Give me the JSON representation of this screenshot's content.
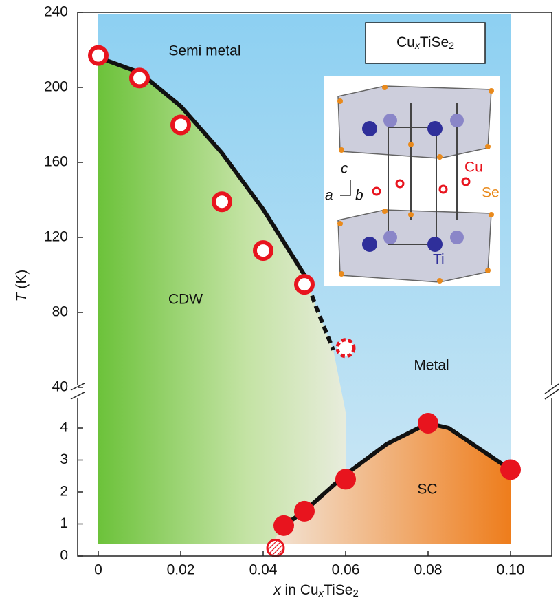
{
  "chart_data": {
    "type": "phase",
    "title_parts": [
      "Cu",
      "x",
      "TiSe",
      "2"
    ],
    "xlabel_parts": [
      "x",
      " in Cu",
      "x",
      "TiSe",
      "2"
    ],
    "ylabel_parts": [
      "T",
      " (K)"
    ],
    "xlim": [
      -0.005,
      0.11
    ],
    "xticks": [
      0,
      0.02,
      0.04,
      0.06,
      0.08,
      {
        "value": 0.1,
        "label": "0.10"
      }
    ],
    "regions": [
      "Semi metal",
      "CDW",
      "Metal",
      "SC"
    ],
    "inset_labels": [
      "c",
      "a",
      "b",
      "Cu",
      "Se",
      "Ti"
    ],
    "upper": {
      "ylim": [
        40,
        240
      ],
      "yticks": [
        40,
        80,
        120,
        160,
        200,
        240
      ],
      "series": [
        {
          "marker": "line",
          "color": "#111111",
          "x": [
            0,
            0.01,
            0.02,
            0.03,
            0.04,
            0.05
          ],
          "values": [
            216,
            208,
            190,
            165,
            135,
            100
          ]
        },
        {
          "marker": "dashed-line",
          "color": "#111111",
          "x": [
            0.05,
            0.053,
            0.057
          ],
          "values": [
            100,
            82,
            60
          ]
        },
        {
          "marker": "open",
          "color": "#e8141e",
          "x": [
            0,
            0.01,
            0.02,
            0.03,
            0.04,
            0.05
          ],
          "values": [
            217,
            205,
            180,
            139,
            113,
            95
          ]
        },
        {
          "marker": "dashed",
          "color": "#e8141e",
          "x": [
            0.06
          ],
          "values": [
            61
          ]
        }
      ]
    },
    "lower": {
      "ylim": [
        0,
        5
      ],
      "yticks": [
        0,
        1,
        2,
        3,
        4
      ],
      "series": [
        {
          "marker": "line",
          "color": "#111111",
          "x": [
            0.045,
            0.05,
            0.06,
            0.07,
            0.08,
            0.085,
            0.1
          ],
          "values": [
            0.95,
            1.4,
            2.55,
            3.5,
            4.15,
            4.0,
            2.7
          ]
        },
        {
          "marker": "hatched",
          "color": "#e8141e",
          "x": [
            0.043
          ],
          "values": [
            0.25
          ]
        },
        {
          "marker": "filled",
          "color": "#e8141e",
          "x": [
            0.045,
            0.05,
            0.06,
            0.08,
            0.1
          ],
          "values": [
            0.95,
            1.4,
            2.4,
            4.15,
            2.7
          ]
        }
      ]
    }
  }
}
